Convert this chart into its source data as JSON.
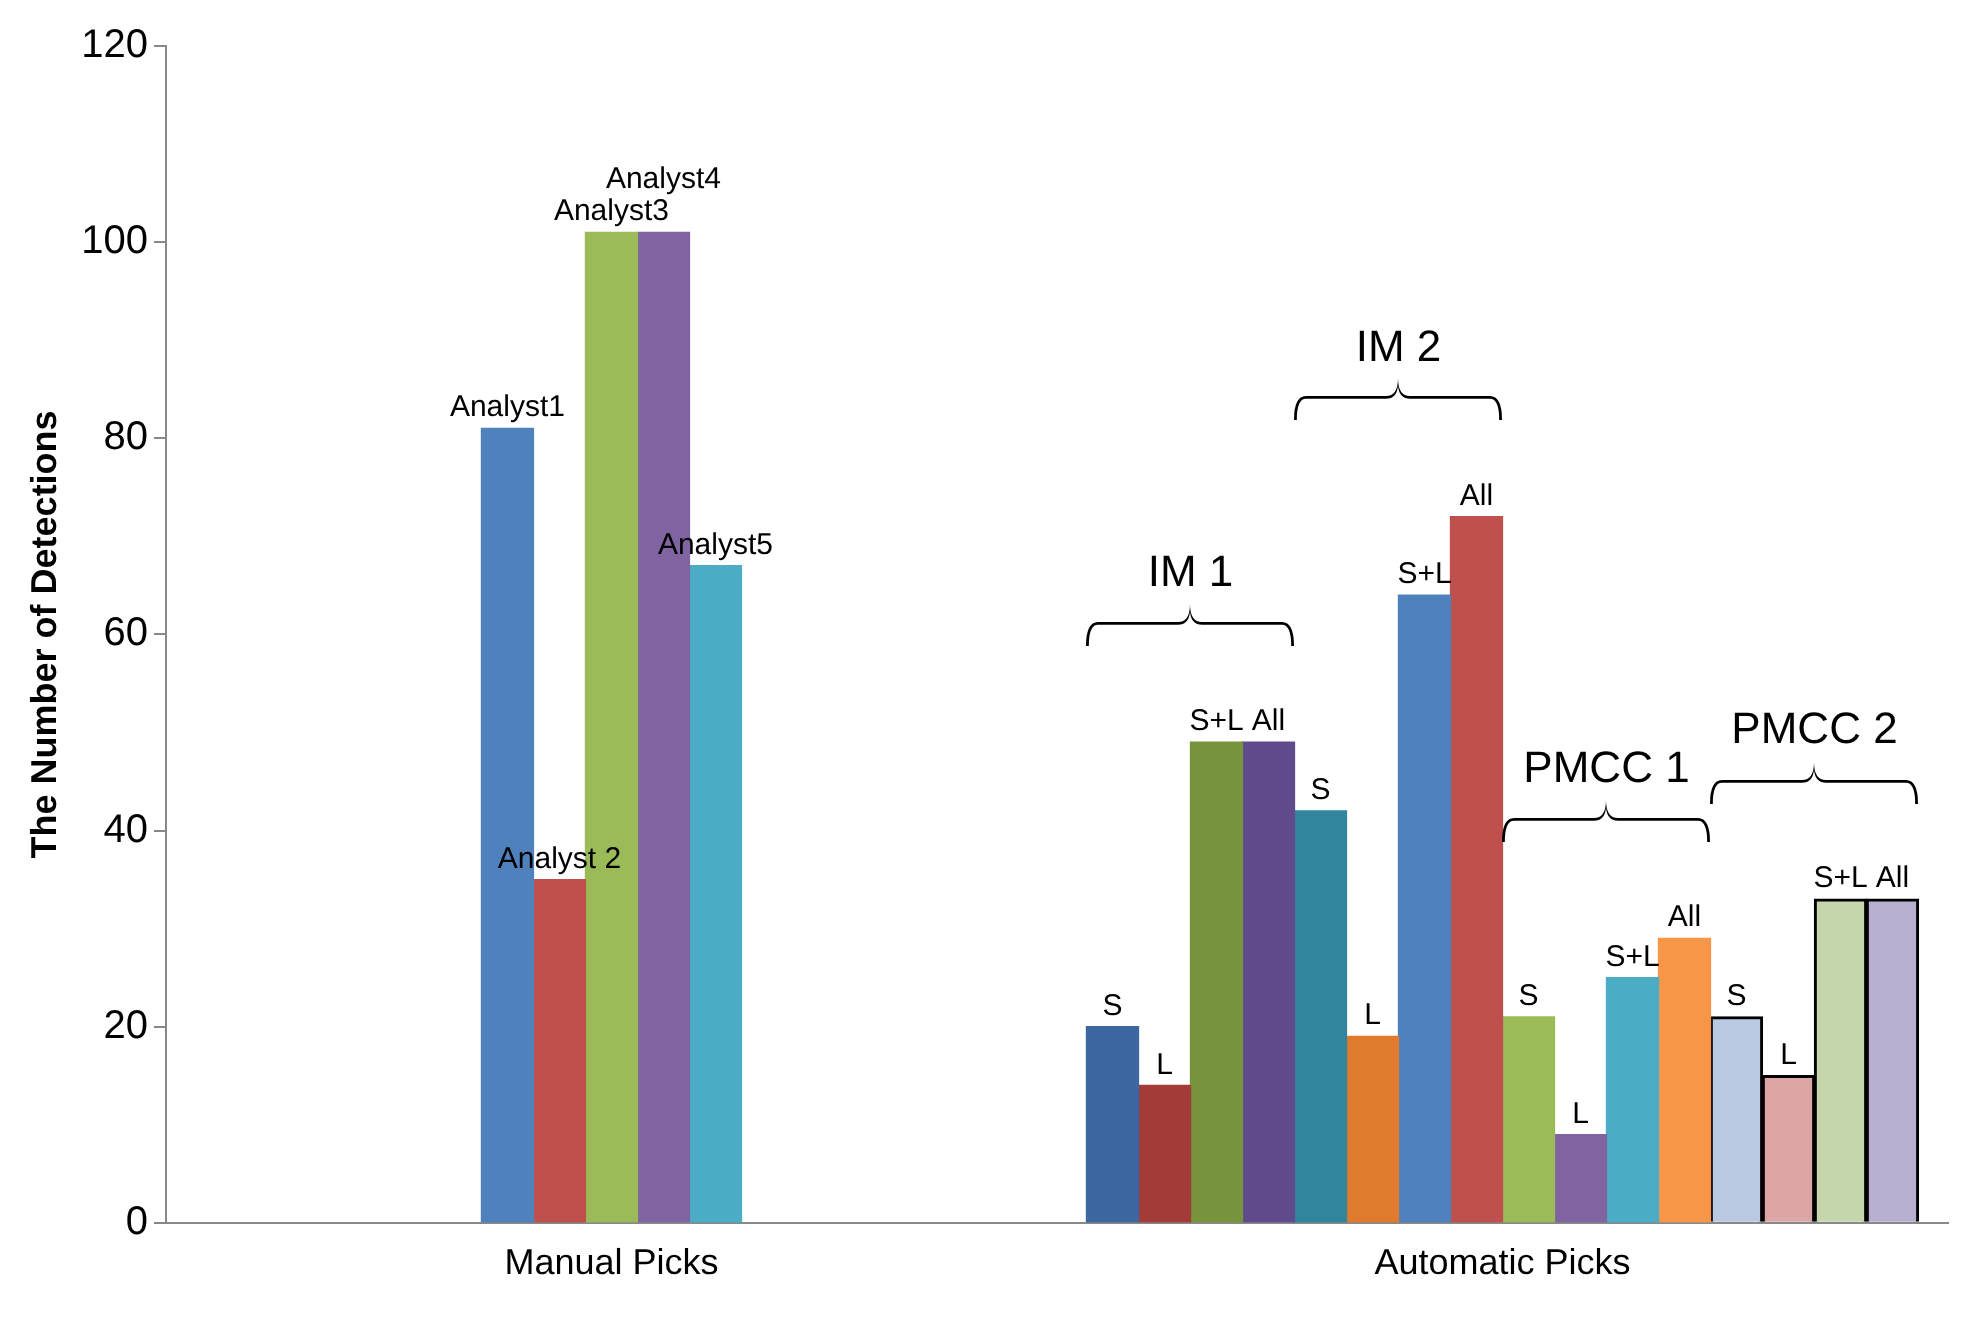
{
  "chart_data": {
    "type": "bar",
    "categories": [
      "Manual Picks",
      "Automatic Picks"
    ],
    "ylabel": "The Number of Detections",
    "ylim": [
      0,
      120
    ],
    "yticks": [
      0,
      20,
      40,
      60,
      80,
      100,
      120
    ],
    "grid": false,
    "legend": false,
    "annotations": [
      "IM 1",
      "IM 2",
      "PMCC 1",
      "PMCC 2"
    ],
    "series": [
      {
        "name": "Analyst1",
        "color": "#4f81bd",
        "values": [
          81,
          null
        ]
      },
      {
        "name": "Analyst 2",
        "color": "#c0504d",
        "values": [
          35,
          null
        ]
      },
      {
        "name": "Analyst3",
        "color": "#9bbb59",
        "values": [
          101,
          null
        ]
      },
      {
        "name": "Analyst4",
        "color": "#8064a2",
        "values": [
          101,
          null
        ]
      },
      {
        "name": "Analyst5",
        "color": "#4bacc6",
        "values": [
          67,
          null
        ]
      },
      {
        "name": "S",
        "color": "#3c67a0",
        "values": [
          null,
          20
        ]
      },
      {
        "name": "L",
        "color": "#a33b38",
        "values": [
          null,
          14
        ]
      },
      {
        "name": "S+L",
        "color": "#77933c",
        "values": [
          null,
          49
        ]
      },
      {
        "name": "All",
        "color": "#5f4b8b",
        "values": [
          null,
          49
        ]
      },
      {
        "name": "S",
        "color": "#31859c",
        "values": [
          null,
          42
        ]
      },
      {
        "name": "L",
        "color": "#e07b2d",
        "values": [
          null,
          19
        ]
      },
      {
        "name": "S+L",
        "color": "#4f81bd",
        "values": [
          null,
          64
        ]
      },
      {
        "name": "All",
        "color": "#c0504d",
        "values": [
          null,
          72
        ]
      },
      {
        "name": "S",
        "color": "#9bbb59",
        "values": [
          null,
          21
        ]
      },
      {
        "name": "L",
        "color": "#8064a2",
        "values": [
          null,
          9
        ]
      },
      {
        "name": "S+L",
        "color": "#4bacc6",
        "values": [
          null,
          25
        ]
      },
      {
        "name": "All",
        "color": "#f79646",
        "values": [
          null,
          29
        ]
      },
      {
        "name": "S",
        "color": "#b9c9e2",
        "values": [
          null,
          21
        ]
      },
      {
        "name": "L",
        "color": "#dba6a5",
        "values": [
          null,
          15
        ]
      },
      {
        "name": "S+L",
        "color": "#c6d6ac",
        "values": [
          null,
          33
        ]
      },
      {
        "name": "All",
        "color": "#b8aed0",
        "values": [
          null,
          33
        ]
      }
    ]
  }
}
